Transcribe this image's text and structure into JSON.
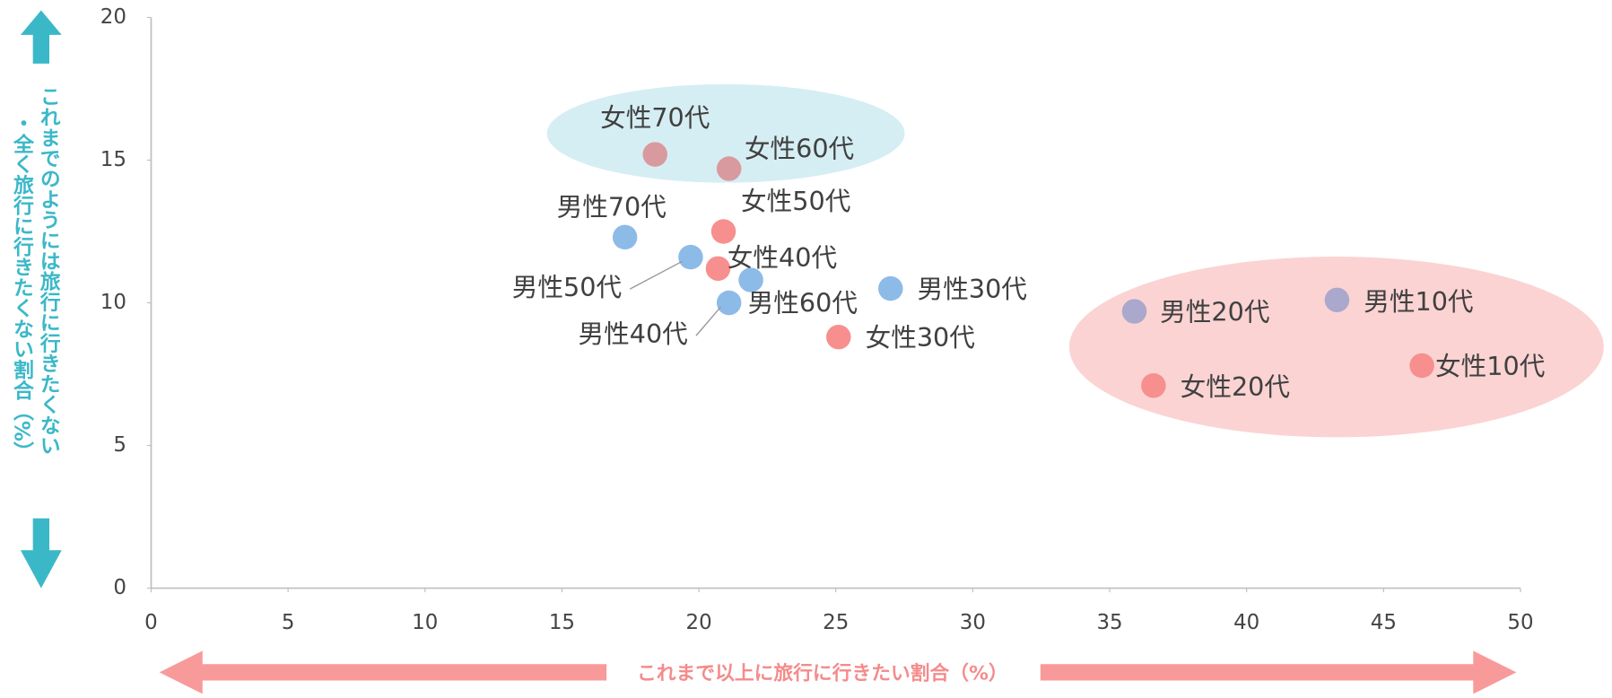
{
  "chart_data": {
    "type": "scatter",
    "xlabel": "これまで以上に旅行に行きたい割合（%）",
    "ylabel": [
      "これまでのようには旅行に行きたくない",
      "・全く旅行に行きたくない割合（%）"
    ],
    "xlim": [
      0,
      50
    ],
    "xticks": [
      0,
      5,
      10,
      15,
      20,
      25,
      30,
      35,
      40,
      45,
      50
    ],
    "ylim": [
      0,
      20
    ],
    "yticks": [
      0,
      5,
      10,
      15,
      20
    ],
    "points": [
      {
        "name": "女性70代",
        "x": 18.4,
        "y": 15.2,
        "color": "#d99a9f"
      },
      {
        "name": "女性60代",
        "x": 21.1,
        "y": 14.7,
        "color": "#d99a9f"
      },
      {
        "name": "女性50代",
        "x": 20.9,
        "y": 12.5,
        "color": "#f78f8f"
      },
      {
        "name": "男性70代",
        "x": 17.3,
        "y": 12.3,
        "color": "#8dbbe8"
      },
      {
        "name": "男性50代",
        "x": 19.7,
        "y": 11.6,
        "color": "#8dbbe8"
      },
      {
        "name": "女性40代",
        "x": 20.7,
        "y": 11.2,
        "color": "#f78f8f"
      },
      {
        "name": "男性60代",
        "x": 21.9,
        "y": 10.8,
        "color": "#8dbbe8"
      },
      {
        "name": "男性40代",
        "x": 21.1,
        "y": 10.0,
        "color": "#8dbbe8"
      },
      {
        "name": "男性30代",
        "x": 27.0,
        "y": 10.5,
        "color": "#8dbbe8"
      },
      {
        "name": "女性30代",
        "x": 25.1,
        "y": 8.8,
        "color": "#f78f8f"
      },
      {
        "name": "男性20代",
        "x": 35.9,
        "y": 9.7,
        "color": "#aaa8cc"
      },
      {
        "name": "男性10代",
        "x": 43.3,
        "y": 10.1,
        "color": "#aaa8cc"
      },
      {
        "name": "女性20代",
        "x": 36.6,
        "y": 7.1,
        "color": "#f78f8f"
      },
      {
        "name": "女性10代",
        "x": 46.4,
        "y": 7.8,
        "color": "#f78f8f"
      }
    ]
  }
}
